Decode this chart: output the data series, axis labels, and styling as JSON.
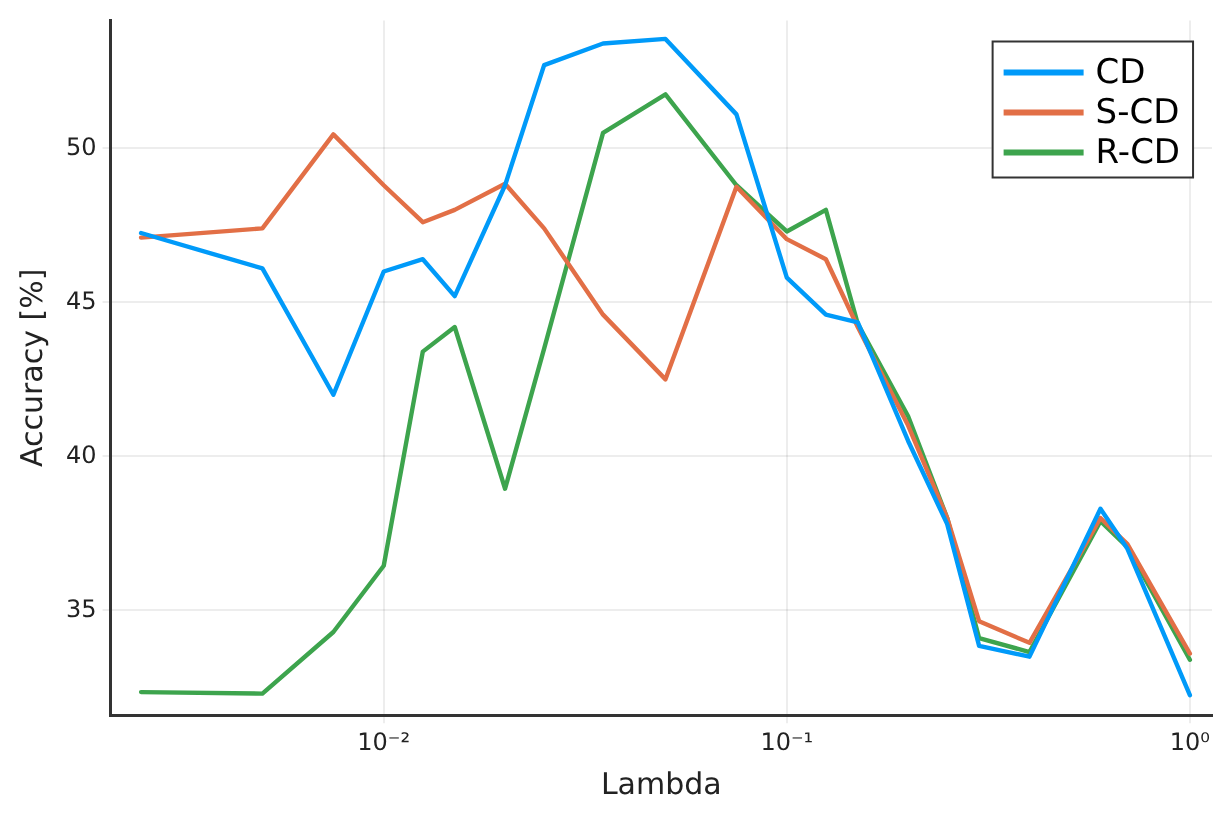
{
  "chart_data": {
    "type": "line",
    "xlabel": "Lambda",
    "ylabel": "Accuracy [%]",
    "log": "x",
    "x": [
      0.0025,
      0.005,
      0.0075,
      0.01,
      0.0125,
      0.015,
      0.02,
      0.025,
      0.035,
      0.05,
      0.075,
      0.1,
      0.125,
      0.15,
      0.2,
      0.25,
      0.3,
      0.4,
      0.6,
      0.7,
      1.0
    ],
    "series": [
      {
        "name": "CD",
        "color": "#009af9",
        "values": [
          47.25,
          46.1,
          42.0,
          46.0,
          46.4,
          45.2,
          48.8,
          52.7,
          53.4,
          53.55,
          51.1,
          45.8,
          44.6,
          44.35,
          40.5,
          37.8,
          33.85,
          33.5,
          38.3,
          37.0,
          32.25
        ]
      },
      {
        "name": "S-CD",
        "color": "#e26f46",
        "values": [
          47.1,
          47.4,
          50.45,
          48.8,
          47.6,
          48.0,
          48.85,
          47.4,
          44.6,
          42.5,
          48.75,
          47.05,
          46.4,
          44.2,
          41.0,
          38.0,
          34.65,
          33.95,
          38.0,
          37.15,
          33.6
        ]
      },
      {
        "name": "R-CD",
        "color": "#3da44d",
        "values": [
          32.35,
          32.3,
          34.3,
          36.45,
          43.4,
          44.2,
          38.95,
          43.5,
          50.5,
          51.75,
          48.8,
          47.3,
          48.0,
          44.3,
          41.3,
          38.0,
          34.1,
          33.65,
          37.9,
          37.05,
          33.4
        ]
      }
    ],
    "xlim": [
      0.0021,
      1.135
    ],
    "ylim": [
      31.6,
      54.15
    ],
    "xticks": [
      {
        "value": 0.01,
        "label": "10⁻²"
      },
      {
        "value": 0.1,
        "label": "10⁻¹"
      },
      {
        "value": 1,
        "label": "10⁰"
      }
    ],
    "yticks": [
      35,
      40,
      45,
      50
    ],
    "grid": true,
    "legend": "top right",
    "marker": "none",
    "line_style": "solid"
  }
}
